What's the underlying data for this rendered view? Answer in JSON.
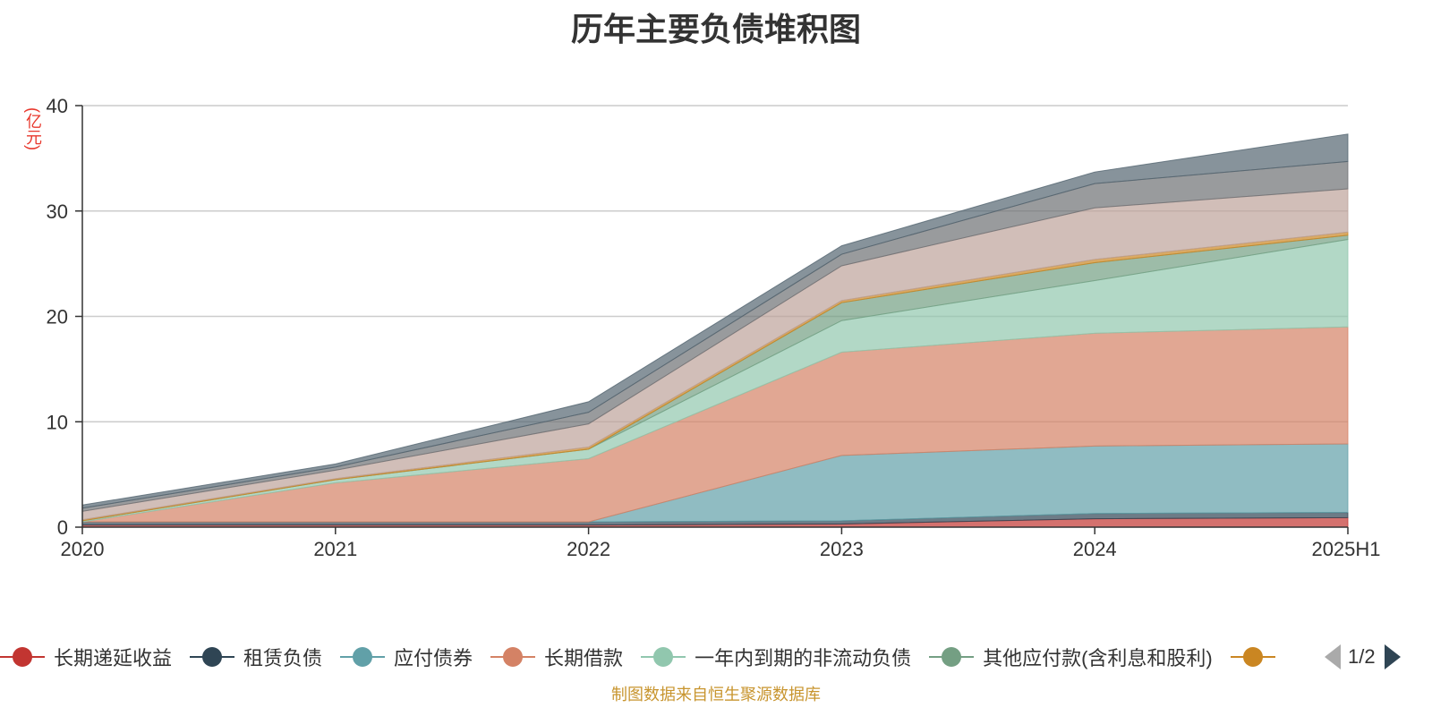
{
  "chart_data": {
    "type": "area",
    "stacked": true,
    "title": "历年主要负债堆积图",
    "ylabel": "(亿元)",
    "categories": [
      "2020",
      "2021",
      "2022",
      "2023",
      "2024",
      "2025H1"
    ],
    "ylim": [
      0,
      40
    ],
    "yticks": [
      0,
      10,
      20,
      30,
      40
    ],
    "grid": true,
    "legend_position": "bottom",
    "series": [
      {
        "name": "长期递延收益",
        "color": "#c23531",
        "values": [
          0.2,
          0.2,
          0.2,
          0.3,
          0.8,
          0.9
        ]
      },
      {
        "name": "租赁负债",
        "color": "#2f4554",
        "values": [
          0.3,
          0.3,
          0.3,
          0.3,
          0.5,
          0.5
        ]
      },
      {
        "name": "应付债券",
        "color": "#61a0a8",
        "values": [
          0,
          0,
          0,
          6.2,
          6.4,
          6.5
        ]
      },
      {
        "name": "长期借款",
        "color": "#d48265",
        "values": [
          0,
          3.7,
          6.0,
          9.8,
          10.7,
          11.1
        ]
      },
      {
        "name": "一年内到期的非流动负债",
        "color": "#91c7ae",
        "values": [
          0.1,
          0.3,
          0.9,
          3.0,
          5.0,
          8.3
        ]
      },
      {
        "name": "其他应付款(含利息和股利)",
        "color": "#749f83",
        "values": [
          0,
          0,
          0,
          1.7,
          1.7,
          0.4
        ]
      },
      {
        "name": "",
        "color": "#ca8622",
        "values": [
          0.1,
          0.1,
          0.2,
          0.2,
          0.3,
          0.3
        ]
      },
      {
        "name": "",
        "color": "#bda29a",
        "values": [
          0.8,
          0.8,
          2.2,
          3.3,
          4.9,
          4.1
        ]
      },
      {
        "name": "",
        "color": "#6e7074",
        "values": [
          0.3,
          0.3,
          1.1,
          1.1,
          2.3,
          2.6
        ]
      },
      {
        "name": "",
        "color": "#546570",
        "values": [
          0.3,
          0.3,
          1.0,
          0.8,
          1.1,
          2.6
        ]
      }
    ]
  },
  "legend": {
    "items": [
      {
        "label": "长期递延收益",
        "color": "#c23531"
      },
      {
        "label": "租赁负债",
        "color": "#2f4554"
      },
      {
        "label": "应付债券",
        "color": "#61a0a8"
      },
      {
        "label": "长期借款",
        "color": "#d48265"
      },
      {
        "label": "一年内到期的非流动负债",
        "color": "#91c7ae"
      },
      {
        "label": "其他应付款(含利息和股利)",
        "color": "#749f83"
      },
      {
        "label": "",
        "color": "#ca8622"
      }
    ],
    "page": "1/2"
  },
  "source_note": "制图数据来自恒生聚源数据库"
}
